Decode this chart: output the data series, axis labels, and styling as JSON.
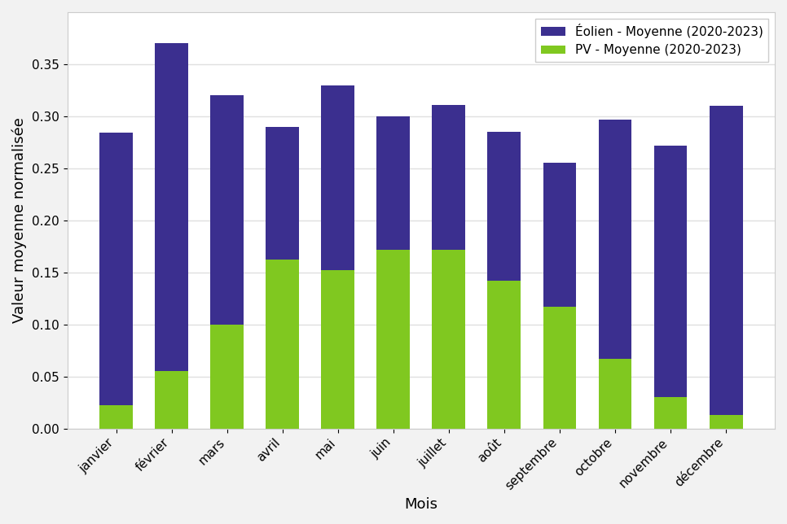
{
  "months": [
    "janvier",
    "février",
    "mars",
    "avril",
    "mai",
    "juin",
    "juillet",
    "août",
    "septembre",
    "octobre",
    "novembre",
    "décembre"
  ],
  "pv_values": [
    0.022,
    0.055,
    0.1,
    0.162,
    0.152,
    0.172,
    0.172,
    0.142,
    0.117,
    0.067,
    0.03,
    0.013
  ],
  "total_values": [
    0.284,
    0.37,
    0.32,
    0.29,
    0.33,
    0.3,
    0.311,
    0.285,
    0.255,
    0.297,
    0.272,
    0.31
  ],
  "eolien_color": "#3b2f8f",
  "pv_color": "#80c820",
  "eolien_label": "Éolien - Moyenne (2020-2023)",
  "pv_label": "PV - Moyenne (2020-2023)",
  "xlabel": "Mois",
  "ylabel": "Valeur moyenne normalisée",
  "ylim": [
    0,
    0.4
  ],
  "yticks": [
    0.0,
    0.05,
    0.1,
    0.15,
    0.2,
    0.25,
    0.3,
    0.35
  ],
  "legend_loc": "upper right",
  "figure_facecolor": "#f2f2f2",
  "axes_facecolor": "#ffffff",
  "bar_width": 0.6,
  "grid_color": "#e0e0e0",
  "figsize": [
    9.66,
    6.44
  ],
  "dpi": 100
}
